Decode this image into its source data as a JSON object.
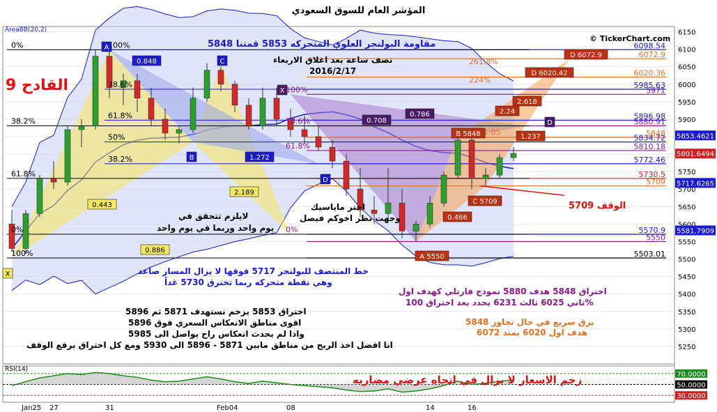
{
  "title": "المؤشر العام للسوق السعودي",
  "indicator_label": "AreaBB(20,2)",
  "brand": "© TickerChart.com",
  "watermark": "القادح 9",
  "chart_data": {
    "type": "candlestick",
    "y_ticks": [
      5250,
      5300,
      5350,
      5400,
      5450,
      5500,
      5550,
      5600,
      5650,
      5700,
      5750,
      5800,
      5850,
      5900,
      5950,
      6000,
      6050,
      6100,
      6150
    ],
    "ylim": [
      5200,
      6165
    ],
    "x_ticks": [
      {
        "label": "Jan25",
        "i": 1
      },
      {
        "label": "27",
        "i": 3
      },
      {
        "label": "31",
        "i": 7
      },
      {
        "label": "Feb04",
        "i": 15
      },
      {
        "label": "08",
        "i": 20
      },
      {
        "label": "14",
        "i": 30
      },
      {
        "label": "16",
        "i": 33
      }
    ],
    "n_bars": 37,
    "candles": [
      {
        "o": 5600,
        "h": 5640,
        "l": 5520,
        "c": 5530
      },
      {
        "o": 5530,
        "h": 5640,
        "l": 5515,
        "c": 5630
      },
      {
        "o": 5630,
        "h": 5740,
        "l": 5620,
        "c": 5730
      },
      {
        "o": 5730,
        "h": 5780,
        "l": 5700,
        "c": 5720
      },
      {
        "o": 5720,
        "h": 5880,
        "l": 5710,
        "c": 5870
      },
      {
        "o": 5870,
        "h": 5900,
        "l": 5820,
        "c": 5880
      },
      {
        "o": 5880,
        "h": 6098,
        "l": 5870,
        "c": 6080
      },
      {
        "o": 6080,
        "h": 6098,
        "l": 5960,
        "c": 5990
      },
      {
        "o": 5990,
        "h": 6030,
        "l": 5940,
        "c": 6010
      },
      {
        "o": 6010,
        "h": 6030,
        "l": 5920,
        "c": 5960
      },
      {
        "o": 5960,
        "h": 5990,
        "l": 5880,
        "c": 5900
      },
      {
        "o": 5900,
        "h": 5930,
        "l": 5840,
        "c": 5860
      },
      {
        "o": 5860,
        "h": 5880,
        "l": 5830,
        "c": 5870
      },
      {
        "o": 5870,
        "h": 5990,
        "l": 5860,
        "c": 5960
      },
      {
        "o": 5960,
        "h": 6060,
        "l": 5950,
        "c": 6040
      },
      {
        "o": 6040,
        "h": 6050,
        "l": 5980,
        "c": 6000
      },
      {
        "o": 6000,
        "h": 6010,
        "l": 5920,
        "c": 5940
      },
      {
        "o": 5940,
        "h": 5960,
        "l": 5870,
        "c": 5880
      },
      {
        "o": 5880,
        "h": 5990,
        "l": 5870,
        "c": 5960
      },
      {
        "o": 5960,
        "h": 5990,
        "l": 5880,
        "c": 5900
      },
      {
        "o": 5900,
        "h": 5930,
        "l": 5850,
        "c": 5870
      },
      {
        "o": 5870,
        "h": 5910,
        "l": 5830,
        "c": 5850
      },
      {
        "o": 5850,
        "h": 5880,
        "l": 5810,
        "c": 5820
      },
      {
        "o": 5820,
        "h": 5840,
        "l": 5760,
        "c": 5780
      },
      {
        "o": 5780,
        "h": 5800,
        "l": 5680,
        "c": 5700
      },
      {
        "o": 5700,
        "h": 5760,
        "l": 5620,
        "c": 5640
      },
      {
        "o": 5640,
        "h": 5680,
        "l": 5600,
        "c": 5630
      },
      {
        "o": 5630,
        "h": 5760,
        "l": 5610,
        "c": 5660
      },
      {
        "o": 5660,
        "h": 5700,
        "l": 5560,
        "c": 5580
      },
      {
        "o": 5580,
        "h": 5610,
        "l": 5550,
        "c": 5600
      },
      {
        "o": 5600,
        "h": 5680,
        "l": 5590,
        "c": 5660
      },
      {
        "o": 5660,
        "h": 5750,
        "l": 5650,
        "c": 5740
      },
      {
        "o": 5740,
        "h": 5848,
        "l": 5730,
        "c": 5840
      },
      {
        "o": 5840,
        "h": 5850,
        "l": 5700,
        "c": 5730
      },
      {
        "o": 5730,
        "h": 5760,
        "l": 5709,
        "c": 5740
      },
      {
        "o": 5740,
        "h": 5800,
        "l": 5730,
        "c": 5790
      },
      {
        "o": 5790,
        "h": 5820,
        "l": 5780,
        "c": 5802
      }
    ],
    "price_levels": [
      {
        "label": "6098.54",
        "value": 6098.54,
        "color": "#1a1ad4"
      },
      {
        "label": "6072.9",
        "value": 6072.9,
        "color": "#e07020"
      },
      {
        "label": "6020.36",
        "value": 6020.36,
        "color": "#e07020"
      },
      {
        "label": "5985.63",
        "value": 5985.63,
        "color": "#1a1ad4"
      },
      {
        "label": "5971",
        "value": 5971,
        "color": "#8a1a8a"
      },
      {
        "label": "5896.98",
        "value": 5896.98,
        "color": "#1a1ad4"
      },
      {
        "label": "5880.91",
        "value": 5880.91,
        "color": "#8a1a8a"
      },
      {
        "label": "5848",
        "value": 5848,
        "color": "#e07020"
      },
      {
        "label": "5834.72",
        "value": 5834.72,
        "color": "#1a1ad4"
      },
      {
        "label": "5810.18",
        "value": 5810.18,
        "color": "#8a1a8a"
      },
      {
        "label": "5772.46",
        "value": 5772.46,
        "color": "#1a1ad4"
      },
      {
        "label": "5730.5",
        "value": 5730.5,
        "color": "#d02020"
      },
      {
        "label": "5709",
        "value": 5709,
        "color": "#e07020"
      },
      {
        "label": "5570.9",
        "value": 5570.9,
        "color": "#1a1ad4"
      },
      {
        "label": "5550",
        "value": 5550,
        "color": "#8a1a8a"
      },
      {
        "label": "5503.01",
        "value": 5503.01,
        "color": "#000000"
      }
    ],
    "fib_left": [
      {
        "label": "0%",
        "value": 6098.54
      },
      {
        "label": "38.2%",
        "value": 5880.91
      },
      {
        "label": "61.8%",
        "value": 5730.5
      },
      {
        "label": "0%",
        "value": 5570.9
      },
      {
        "label": "100%",
        "value": 5503.01
      }
    ],
    "fib_mid": [
      {
        "label": "100%",
        "value": 6098.54
      },
      {
        "label": "78.6%",
        "value": 5985.63
      },
      {
        "label": "61.8%",
        "value": 5896.98
      },
      {
        "label": "50%",
        "value": 5834.72
      },
      {
        "label": "38.2%",
        "value": 5772.46
      }
    ],
    "fib_x": [
      {
        "label": "100%",
        "value": 5971
      },
      {
        "label": "78.6%",
        "value": 5880.91
      },
      {
        "label": "61.8%",
        "value": 5810.18
      },
      {
        "label": "0%",
        "value": 5570.9
      }
    ],
    "fib_orange": [
      {
        "label": "261.8%",
        "value": 6072.9
      },
      {
        "label": "224%",
        "value": 6020.36
      },
      {
        "label": "5871.05",
        "value": 5871.05
      }
    ],
    "right_badges": [
      {
        "label": "5853.4621",
        "value": 5853.46,
        "bg": "#1a1ad4",
        "fg": "#ffffff"
      },
      {
        "label": "5801.6494",
        "value": 5801.65,
        "bg": "#d02020",
        "fg": "#ffffff"
      },
      {
        "label": "5717.6265",
        "value": 5717.63,
        "bg": "#1a1ad4",
        "fg": "#ffffff"
      },
      {
        "label": "5581.7909",
        "value": 5581.79,
        "bg": "#1a1ad4",
        "fg": "#ffffff"
      }
    ],
    "rsi_label": "RSI(14)",
    "rsi_levels": [
      {
        "label": "70.0000",
        "bg": "#1a8a1a",
        "fg": "#ffffff"
      },
      {
        "label": "50.0000",
        "bg": "#000000",
        "fg": "#ffffff"
      },
      {
        "label": "30.0000",
        "bg": "#d02020",
        "fg": "#ffffff"
      }
    ],
    "rsi_values": [
      48,
      55,
      62,
      66,
      70,
      68,
      72,
      70,
      66,
      63,
      58,
      55,
      56,
      60,
      64,
      60,
      55,
      52,
      56,
      53,
      50,
      48,
      46,
      44,
      40,
      37,
      38,
      42,
      36,
      38,
      42,
      48,
      56,
      50,
      52,
      56,
      58
    ],
    "pattern_points": {
      "X1": "X",
      "A1": "A",
      "B1": "B",
      "C1": "C",
      "D1": "D",
      "X2": "X",
      "D2": "D",
      "A2": "A 5550",
      "B2": "B 5848",
      "C2": "C 5709",
      "D2a": "D 6072.9",
      "D2b": "D 6020.42"
    },
    "ratio_labels": {
      "r0848": "0.848",
      "r1272": "1.272",
      "r2189": "2.189",
      "r0443": "0.443",
      "r0886": "0.886",
      "r0708": "0.708",
      "r0786": "0.786",
      "r0466": "0.466",
      "r2618": "2.618",
      "r224": "2.24",
      "r1237": "1.237"
    }
  },
  "annotations": {
    "top_resist": "مقاومة البولنجر العلوي المتحركه 5853 قمتنا 5848",
    "half_hour": "نصف ساعة بعد اغلاق الاربعاء",
    "date": "2016/2/17",
    "not_required": "لايلزم تتحقق في",
    "same_day": "يوم واحد وربما في يوم واحد",
    "choose": "اختر ماياسيك",
    "view": "وجهت نظر اخوكم فيصل",
    "stop": "الوقف 5709",
    "middle_line": "خط المنتصف للبولنجر 5717 فوقها لا يزال المسار صاعد",
    "breach_point": "وهي نقطة متحركه ربما تخترق 5730 غداً",
    "breakout1": "اختراق 5848 هدف 5880 نموذج فارتلي كهدف اول",
    "breakout2": "ثاني 6025 ثالث 6231 يحدد بعد اختراق 100%",
    "fast_lightning": "برق سريع في حال تجاوز 5848",
    "first_target": "هدف اول 6020 يمتد 6072",
    "b1": "اختراق 5853 بزخم نستهدف 5871 ثم 5896",
    "b2": "اقوى مناطق الانعكاس السعري فوق 5896",
    "b3": "واذا لم يحدث انعكاس راح يواصل الى 5985",
    "b4": "انا افضل اخذ الربح من مناطق مابين 5871 - 5896 الى 5930 ومع كل اختراق برفع الوقف",
    "rsi_note": "زخم الاسعار لا يزال في اتجاه عرضي مضاربه"
  }
}
